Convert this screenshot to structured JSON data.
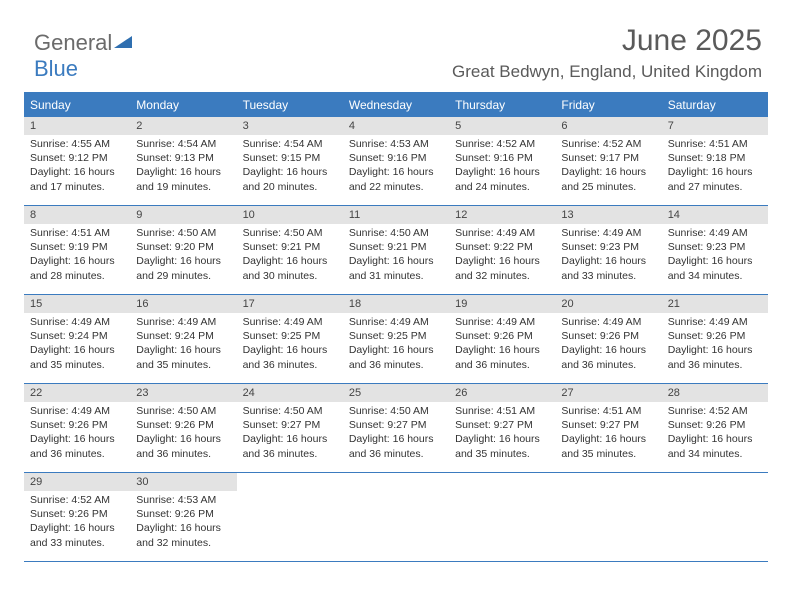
{
  "logo": {
    "line1": "General",
    "line2": "Blue",
    "tri_color": "#2f6fb0"
  },
  "title": "June 2025",
  "subtitle": "Great Bedwyn, England, United Kingdom",
  "colors": {
    "header_bg": "#3b7bbf",
    "daynum_bg": "#e3e3e3",
    "border": "#3b7bbf",
    "text": "#333333",
    "title_text": "#5a5a5a"
  },
  "day_headers": [
    "Sunday",
    "Monday",
    "Tuesday",
    "Wednesday",
    "Thursday",
    "Friday",
    "Saturday"
  ],
  "weeks": [
    [
      {
        "n": "1",
        "sunrise": "4:55 AM",
        "sunset": "9:12 PM",
        "daylight": "16 hours and 17 minutes."
      },
      {
        "n": "2",
        "sunrise": "4:54 AM",
        "sunset": "9:13 PM",
        "daylight": "16 hours and 19 minutes."
      },
      {
        "n": "3",
        "sunrise": "4:54 AM",
        "sunset": "9:15 PM",
        "daylight": "16 hours and 20 minutes."
      },
      {
        "n": "4",
        "sunrise": "4:53 AM",
        "sunset": "9:16 PM",
        "daylight": "16 hours and 22 minutes."
      },
      {
        "n": "5",
        "sunrise": "4:52 AM",
        "sunset": "9:16 PM",
        "daylight": "16 hours and 24 minutes."
      },
      {
        "n": "6",
        "sunrise": "4:52 AM",
        "sunset": "9:17 PM",
        "daylight": "16 hours and 25 minutes."
      },
      {
        "n": "7",
        "sunrise": "4:51 AM",
        "sunset": "9:18 PM",
        "daylight": "16 hours and 27 minutes."
      }
    ],
    [
      {
        "n": "8",
        "sunrise": "4:51 AM",
        "sunset": "9:19 PM",
        "daylight": "16 hours and 28 minutes."
      },
      {
        "n": "9",
        "sunrise": "4:50 AM",
        "sunset": "9:20 PM",
        "daylight": "16 hours and 29 minutes."
      },
      {
        "n": "10",
        "sunrise": "4:50 AM",
        "sunset": "9:21 PM",
        "daylight": "16 hours and 30 minutes."
      },
      {
        "n": "11",
        "sunrise": "4:50 AM",
        "sunset": "9:21 PM",
        "daylight": "16 hours and 31 minutes."
      },
      {
        "n": "12",
        "sunrise": "4:49 AM",
        "sunset": "9:22 PM",
        "daylight": "16 hours and 32 minutes."
      },
      {
        "n": "13",
        "sunrise": "4:49 AM",
        "sunset": "9:23 PM",
        "daylight": "16 hours and 33 minutes."
      },
      {
        "n": "14",
        "sunrise": "4:49 AM",
        "sunset": "9:23 PM",
        "daylight": "16 hours and 34 minutes."
      }
    ],
    [
      {
        "n": "15",
        "sunrise": "4:49 AM",
        "sunset": "9:24 PM",
        "daylight": "16 hours and 35 minutes."
      },
      {
        "n": "16",
        "sunrise": "4:49 AM",
        "sunset": "9:24 PM",
        "daylight": "16 hours and 35 minutes."
      },
      {
        "n": "17",
        "sunrise": "4:49 AM",
        "sunset": "9:25 PM",
        "daylight": "16 hours and 36 minutes."
      },
      {
        "n": "18",
        "sunrise": "4:49 AM",
        "sunset": "9:25 PM",
        "daylight": "16 hours and 36 minutes."
      },
      {
        "n": "19",
        "sunrise": "4:49 AM",
        "sunset": "9:26 PM",
        "daylight": "16 hours and 36 minutes."
      },
      {
        "n": "20",
        "sunrise": "4:49 AM",
        "sunset": "9:26 PM",
        "daylight": "16 hours and 36 minutes."
      },
      {
        "n": "21",
        "sunrise": "4:49 AM",
        "sunset": "9:26 PM",
        "daylight": "16 hours and 36 minutes."
      }
    ],
    [
      {
        "n": "22",
        "sunrise": "4:49 AM",
        "sunset": "9:26 PM",
        "daylight": "16 hours and 36 minutes."
      },
      {
        "n": "23",
        "sunrise": "4:50 AM",
        "sunset": "9:26 PM",
        "daylight": "16 hours and 36 minutes."
      },
      {
        "n": "24",
        "sunrise": "4:50 AM",
        "sunset": "9:27 PM",
        "daylight": "16 hours and 36 minutes."
      },
      {
        "n": "25",
        "sunrise": "4:50 AM",
        "sunset": "9:27 PM",
        "daylight": "16 hours and 36 minutes."
      },
      {
        "n": "26",
        "sunrise": "4:51 AM",
        "sunset": "9:27 PM",
        "daylight": "16 hours and 35 minutes."
      },
      {
        "n": "27",
        "sunrise": "4:51 AM",
        "sunset": "9:27 PM",
        "daylight": "16 hours and 35 minutes."
      },
      {
        "n": "28",
        "sunrise": "4:52 AM",
        "sunset": "9:26 PM",
        "daylight": "16 hours and 34 minutes."
      }
    ],
    [
      {
        "n": "29",
        "sunrise": "4:52 AM",
        "sunset": "9:26 PM",
        "daylight": "16 hours and 33 minutes."
      },
      {
        "n": "30",
        "sunrise": "4:53 AM",
        "sunset": "9:26 PM",
        "daylight": "16 hours and 32 minutes."
      },
      null,
      null,
      null,
      null,
      null
    ]
  ],
  "labels": {
    "sunrise": "Sunrise: ",
    "sunset": "Sunset: ",
    "daylight": "Daylight: "
  }
}
